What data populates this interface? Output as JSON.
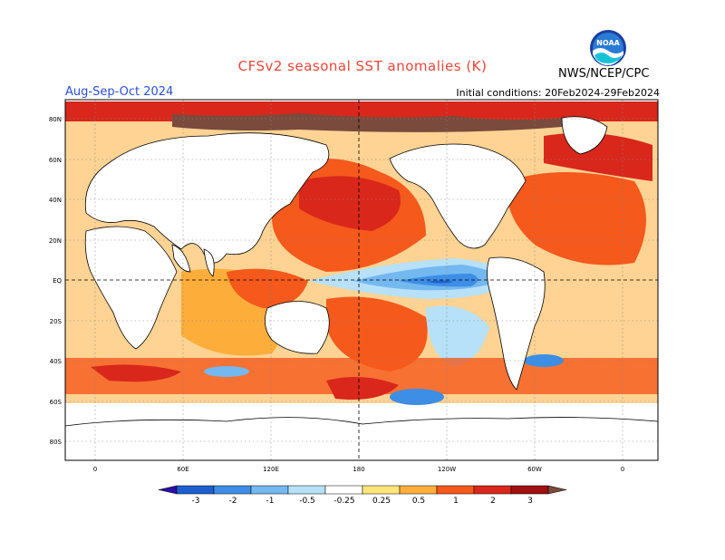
{
  "title": "CFSv2 seasonal SST anomalies (K)",
  "season": "Aug-Sep-Oct 2024",
  "initial_conditions": "Initial conditions: 20Feb2024-29Feb2024",
  "agency": "NWS/NCEP/CPC",
  "logo": {
    "text": "NOAA",
    "icon": "noaa-logo-icon"
  },
  "map": {
    "lat_labels": [
      "80N",
      "60N",
      "40N",
      "20N",
      "EQ",
      "20S",
      "40S",
      "60S",
      "80S"
    ],
    "lon_labels": [
      "0",
      "60E",
      "120E",
      "180",
      "120W",
      "60W",
      "0"
    ]
  },
  "colorbar": {
    "labels": [
      "-3",
      "-2",
      "-1",
      "-0.5",
      "-0.25",
      "0.25",
      "0.5",
      "1",
      "2",
      "3"
    ],
    "colors": [
      "#2c0fa3",
      "#1e5fd0",
      "#3c8ee6",
      "#74b8f0",
      "#b6e1f8",
      "#ffffff",
      "#fde57a",
      "#fdae3a",
      "#f5591c",
      "#d9271b",
      "#a01010",
      "#7a4a3c"
    ]
  }
}
